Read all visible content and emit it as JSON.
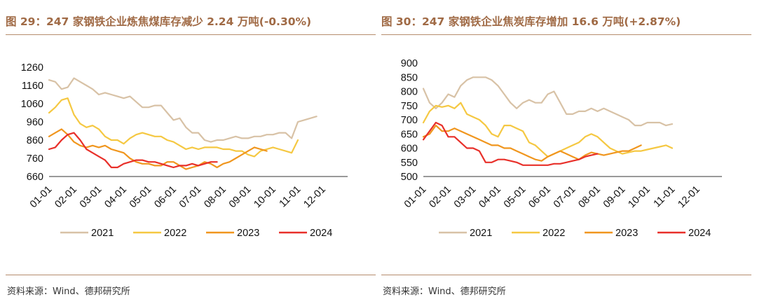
{
  "left": {
    "title": "图 29：247 家钢铁企业炼焦煤库存减少 2.24 万吨(-0.30%)",
    "source": "资料来源：Wind、德邦研究所"
  },
  "right": {
    "title": "图 30：247 家钢铁企业焦炭库存增加 16.6 万吨(+2.87%)",
    "source": "资料来源：Wind、德邦研究所"
  },
  "chart_data": [
    {
      "type": "line",
      "xlabel": "",
      "ylabel": "",
      "ylim": [
        660,
        1260
      ],
      "y_ticks": [
        660,
        760,
        860,
        960,
        1060,
        1160,
        1260
      ],
      "x_ticks": [
        "01-01",
        "02-01",
        "03-01",
        "04-01",
        "05-01",
        "06-01",
        "07-01",
        "08-01",
        "09-01",
        "10-01",
        "11-01",
        "12-01"
      ],
      "grid": false,
      "legend_position": "bottom",
      "series": [
        {
          "name": "2021",
          "color": "#d8c2a6",
          "x": [
            0,
            0.25,
            0.5,
            0.75,
            1,
            1.25,
            1.5,
            1.75,
            2,
            2.25,
            2.5,
            2.75,
            3,
            3.25,
            3.5,
            3.75,
            4,
            4.25,
            4.5,
            4.75,
            5,
            5.25,
            5.5,
            5.75,
            6,
            6.25,
            6.5,
            6.75,
            7,
            7.25,
            7.5,
            7.75,
            8,
            8.25,
            8.5,
            8.75,
            9,
            9.25,
            9.5,
            9.75,
            10,
            10.25,
            10.5,
            10.75,
            11,
            11.25,
            11.5,
            11.75
          ],
          "values": [
            1190,
            1180,
            1140,
            1150,
            1200,
            1180,
            1160,
            1140,
            1110,
            1120,
            1110,
            1100,
            1090,
            1100,
            1070,
            1040,
            1040,
            1050,
            1050,
            1010,
            970,
            980,
            930,
            900,
            900,
            860,
            850,
            860,
            860,
            870,
            880,
            870,
            870,
            880,
            880,
            890,
            890,
            900,
            900,
            870,
            960,
            970,
            980,
            990,
            null,
            null,
            null,
            null
          ]
        },
        {
          "name": "2022",
          "color": "#f5c842",
          "x": [
            0,
            0.25,
            0.5,
            0.75,
            1,
            1.25,
            1.5,
            1.75,
            2,
            2.25,
            2.5,
            2.75,
            3,
            3.25,
            3.5,
            3.75,
            4,
            4.25,
            4.5,
            4.75,
            5,
            5.25,
            5.5,
            5.75,
            6,
            6.25,
            6.5,
            6.75,
            7,
            7.25,
            7.5,
            7.75,
            8,
            8.25,
            8.5,
            8.75,
            9,
            9.25,
            9.5,
            9.75,
            10,
            10.25,
            10.5,
            10.75,
            11,
            11.25,
            11.5,
            11.75
          ],
          "values": [
            1010,
            1040,
            1080,
            1090,
            1000,
            950,
            930,
            940,
            920,
            880,
            860,
            860,
            840,
            870,
            890,
            900,
            890,
            880,
            880,
            860,
            850,
            830,
            810,
            820,
            810,
            820,
            820,
            820,
            810,
            810,
            800,
            800,
            780,
            770,
            800,
            810,
            820,
            810,
            800,
            790,
            860,
            null,
            null,
            null,
            null,
            null,
            null,
            null
          ]
        },
        {
          "name": "2023",
          "color": "#f0961e",
          "x": [
            0,
            0.25,
            0.5,
            0.75,
            1,
            1.25,
            1.5,
            1.75,
            2,
            2.25,
            2.5,
            2.75,
            3,
            3.25,
            3.5,
            3.75,
            4,
            4.25,
            4.5,
            4.75,
            5,
            5.25,
            5.5,
            5.75,
            6,
            6.25,
            6.5,
            6.75,
            7,
            7.25,
            7.5,
            7.75,
            8,
            8.25,
            8.5,
            8.75,
            9,
            9.25,
            9.5,
            9.75,
            10,
            10.25,
            10.5,
            10.75,
            11,
            11.25,
            11.5,
            11.75
          ],
          "values": [
            880,
            900,
            920,
            890,
            850,
            830,
            820,
            830,
            820,
            830,
            810,
            800,
            790,
            760,
            740,
            730,
            730,
            720,
            720,
            740,
            740,
            720,
            700,
            710,
            720,
            740,
            730,
            710,
            730,
            740,
            760,
            780,
            800,
            820,
            810,
            800,
            null,
            null,
            null,
            null,
            null,
            null,
            null,
            null,
            null,
            null,
            null,
            null
          ]
        },
        {
          "name": "2024",
          "color": "#e8302a",
          "x": [
            0,
            0.25,
            0.5,
            0.75,
            1,
            1.25,
            1.5,
            1.75,
            2,
            2.25,
            2.5,
            2.75,
            3,
            3.25,
            3.5,
            3.75,
            4,
            4.25,
            4.5,
            4.75,
            5,
            5.25,
            5.5,
            5.75,
            6,
            6.25,
            6.5,
            6.75,
            7,
            7.25,
            7.5,
            7.75,
            8,
            8.25,
            8.5,
            8.75,
            9,
            9.25,
            9.5,
            9.75,
            10,
            10.25,
            10.5,
            10.75,
            11,
            11.25,
            11.5,
            11.75
          ],
          "values": [
            810,
            820,
            860,
            890,
            900,
            860,
            810,
            790,
            770,
            750,
            710,
            710,
            730,
            740,
            750,
            750,
            740,
            740,
            730,
            720,
            710,
            720,
            720,
            730,
            720,
            730,
            740,
            740,
            null,
            null,
            null,
            null,
            null,
            null,
            null,
            null,
            null,
            null,
            null,
            null,
            null,
            null,
            null,
            null,
            null,
            null,
            null,
            null
          ]
        }
      ]
    },
    {
      "type": "line",
      "xlabel": "",
      "ylabel": "",
      "ylim": [
        500,
        900
      ],
      "y_ticks": [
        500,
        550,
        600,
        650,
        700,
        750,
        800,
        850,
        900
      ],
      "x_ticks": [
        "01-01",
        "02-01",
        "03-01",
        "04-01",
        "05-01",
        "06-01",
        "07-01",
        "08-01",
        "09-01",
        "10-01",
        "11-01",
        "12-01"
      ],
      "grid": false,
      "legend_position": "bottom",
      "series": [
        {
          "name": "2021",
          "color": "#d8c2a6",
          "x": [
            0,
            0.25,
            0.5,
            0.75,
            1,
            1.25,
            1.5,
            1.75,
            2,
            2.25,
            2.5,
            2.75,
            3,
            3.25,
            3.5,
            3.75,
            4,
            4.25,
            4.5,
            4.75,
            5,
            5.25,
            5.5,
            5.75,
            6,
            6.25,
            6.5,
            6.75,
            7,
            7.25,
            7.5,
            7.75,
            8,
            8.25,
            8.5,
            8.75,
            9,
            9.25,
            9.5,
            9.75,
            10,
            10.25,
            10.5,
            10.75,
            11,
            11.25,
            11.5,
            11.75
          ],
          "values": [
            810,
            760,
            740,
            760,
            790,
            780,
            820,
            840,
            850,
            850,
            850,
            840,
            820,
            790,
            760,
            740,
            760,
            770,
            760,
            760,
            790,
            800,
            760,
            720,
            720,
            730,
            730,
            740,
            730,
            740,
            730,
            720,
            710,
            700,
            680,
            680,
            690,
            690,
            690,
            680,
            685,
            null,
            null,
            null,
            null,
            null,
            null,
            null
          ]
        },
        {
          "name": "2022",
          "color": "#f5c842",
          "x": [
            0,
            0.25,
            0.5,
            0.75,
            1,
            1.25,
            1.5,
            1.75,
            2,
            2.25,
            2.5,
            2.75,
            3,
            3.25,
            3.5,
            3.75,
            4,
            4.25,
            4.5,
            4.75,
            5,
            5.25,
            5.5,
            5.75,
            6,
            6.25,
            6.5,
            6.75,
            7,
            7.25,
            7.5,
            7.75,
            8,
            8.25,
            8.5,
            8.75,
            9,
            9.25,
            9.5,
            9.75,
            10,
            10.25,
            10.5,
            10.75,
            11,
            11.25,
            11.5,
            11.75
          ],
          "values": [
            690,
            730,
            750,
            745,
            750,
            740,
            760,
            720,
            710,
            700,
            680,
            650,
            640,
            680,
            680,
            670,
            660,
            620,
            610,
            590,
            570,
            580,
            590,
            600,
            610,
            620,
            640,
            650,
            640,
            620,
            600,
            590,
            580,
            585,
            590,
            590,
            595,
            600,
            605,
            610,
            600,
            null,
            null,
            null,
            null,
            null,
            null,
            null
          ]
        },
        {
          "name": "2023",
          "color": "#f0961e",
          "x": [
            0,
            0.25,
            0.5,
            0.75,
            1,
            1.25,
            1.5,
            1.75,
            2,
            2.25,
            2.5,
            2.75,
            3,
            3.25,
            3.5,
            3.75,
            4,
            4.25,
            4.5,
            4.75,
            5,
            5.25,
            5.5,
            5.75,
            6,
            6.25,
            6.5,
            6.75,
            7,
            7.25,
            7.5,
            7.75,
            8,
            8.25,
            8.5,
            8.75,
            9,
            9.25,
            9.5,
            9.75,
            10,
            10.25,
            10.5,
            10.75,
            11,
            11.25,
            11.5,
            11.75
          ],
          "values": [
            640,
            650,
            680,
            660,
            660,
            670,
            660,
            650,
            640,
            630,
            620,
            610,
            610,
            600,
            600,
            590,
            580,
            570,
            560,
            555,
            570,
            580,
            590,
            580,
            570,
            560,
            575,
            585,
            580,
            575,
            580,
            585,
            590,
            590,
            600,
            610,
            null,
            null,
            null,
            null,
            null,
            null,
            null,
            null,
            null,
            null,
            null,
            null
          ]
        },
        {
          "name": "2024",
          "color": "#e8302a",
          "x": [
            0,
            0.25,
            0.5,
            0.75,
            1,
            1.25,
            1.5,
            1.75,
            2,
            2.25,
            2.5,
            2.75,
            3,
            3.25,
            3.5,
            3.75,
            4,
            4.25,
            4.5,
            4.75,
            5,
            5.25,
            5.5,
            5.75,
            6,
            6.25,
            6.5,
            6.75,
            7,
            7.25,
            7.5,
            7.75,
            8,
            8.25,
            8.5,
            8.75,
            9,
            9.25,
            9.5,
            9.75,
            10,
            10.25,
            10.5,
            10.75,
            11,
            11.25,
            11.5,
            11.75
          ],
          "values": [
            630,
            660,
            690,
            680,
            640,
            640,
            620,
            600,
            600,
            590,
            550,
            550,
            560,
            560,
            555,
            550,
            540,
            540,
            540,
            540,
            540,
            545,
            545,
            550,
            555,
            560,
            570,
            575,
            580,
            null,
            null,
            null,
            null,
            null,
            null,
            null,
            null,
            null,
            null,
            null,
            null,
            null,
            null,
            null,
            null,
            null,
            null,
            null
          ]
        }
      ]
    }
  ]
}
